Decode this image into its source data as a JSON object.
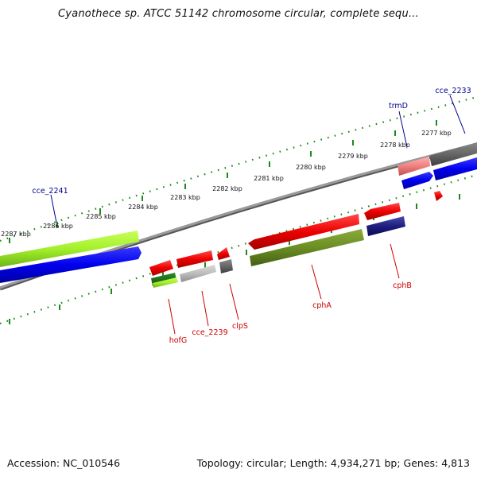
{
  "title": "Cyanothece sp. ATCC 51142 chromosome circular, complete sequ...",
  "footer": {
    "accession": "Accession: NC_010546",
    "topology": "Topology: circular; Length: 4,934,271 bp; Genes: 4,813"
  },
  "colors": {
    "backbone": "#888888",
    "tick": "#1c8a1c",
    "forward_label": "#00008b",
    "reverse_label": "#cc0000"
  },
  "scale_labels": [
    "2287 kbp",
    "2286 kbp",
    "2285 kbp",
    "2284 kbp",
    "2283 kbp",
    "2282 kbp",
    "2281 kbp",
    "2280 kbp",
    "2279 kbp",
    "2278 kbp",
    "2277 kbp"
  ],
  "gene_labels": {
    "cce_2241": "cce_2241",
    "trmD": "trmD",
    "cce_2233": "cce_2233",
    "hofG": "hofG",
    "cce_2239": "cce_2239",
    "clpS": "clpS",
    "cphA": "cphA",
    "cphB": "cphB"
  }
}
